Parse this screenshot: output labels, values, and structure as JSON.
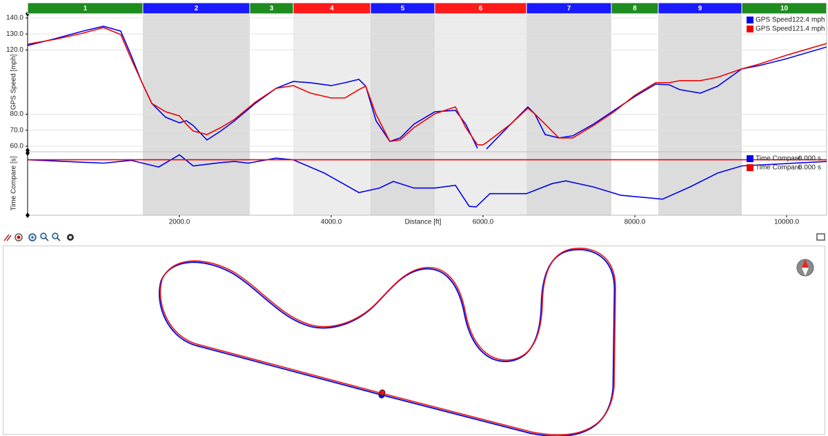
{
  "chart_data": [
    {
      "type": "line",
      "y_label": "GPS Speed [mph]",
      "xlim": [
        0,
        10527
      ],
      "ylim": [
        57.4,
        142.6
      ],
      "yticks": [
        {
          "value": 60,
          "label": "60.0"
        },
        {
          "value": 70,
          "label": "70.0"
        },
        {
          "value": 80,
          "label": "80.0"
        },
        {
          "value": 120,
          "label": "120.0"
        },
        {
          "value": 130,
          "label": "130.0"
        },
        {
          "value": 140,
          "label": "140.0"
        }
      ],
      "grid": true,
      "sectors": [
        {
          "label": "1",
          "color": "#1e8c1e",
          "start": 0,
          "end": 1518
        },
        {
          "label": "2",
          "color": "#1a1aff",
          "start": 1518,
          "end": 2927
        },
        {
          "label": "3",
          "color": "#1e8c1e",
          "start": 2927,
          "end": 3500
        },
        {
          "label": "4",
          "color": "#ff1a1a",
          "start": 3500,
          "end": 4518
        },
        {
          "label": "5",
          "color": "#1a1aff",
          "start": 4518,
          "end": 5364
        },
        {
          "label": "6",
          "color": "#ff1a1a",
          "start": 5364,
          "end": 6573
        },
        {
          "label": "7",
          "color": "#1a1aff",
          "start": 6573,
          "end": 7691
        },
        {
          "label": "8",
          "color": "#1e8c1e",
          "start": 7691,
          "end": 8309
        },
        {
          "label": "9",
          "color": "#1a1aff",
          "start": 8309,
          "end": 9409
        },
        {
          "label": "10",
          "color": "#1e8c1e",
          "start": 9409,
          "end": 10527
        }
      ],
      "x": [
        0,
        364,
        727,
        1000,
        1227,
        1364,
        1500,
        1636,
        1818,
        2000,
        2091,
        2182,
        2364,
        2545,
        2727,
        3000,
        3273,
        3500,
        3727,
        4000,
        4182,
        4364,
        4455,
        4591,
        4773,
        4909,
        5091,
        5364,
        5636,
        5773,
        5927,
        6000,
        6045,
        6364,
        6591,
        6682,
        6818,
        7000,
        7182,
        7455,
        7727,
        8000,
        8273,
        8455,
        8591,
        8864,
        9091,
        9409,
        9636,
        10000,
        10527
      ],
      "series": [
        {
          "name": "GPS Speed",
          "color": "#0000ee",
          "readout": 122.4,
          "unit": "mph",
          "values": [
            122.8,
            127.1,
            131.8,
            134.8,
            131.8,
            116.8,
            100.4,
            86.7,
            78.1,
            74.6,
            75.9,
            72.9,
            63.9,
            69.5,
            75.9,
            86.7,
            96.1,
            100.4,
            99.6,
            97.8,
            99.6,
            101.7,
            97.4,
            75.9,
            63.0,
            65.2,
            73.8,
            81.5,
            82.4,
            73.8,
            58.7,
            null,
            58.3,
            73.8,
            84.5,
            80.2,
            67.3,
            65.2,
            66.5,
            73.8,
            82.4,
            91.0,
            98.7,
            98.3,
            95.3,
            93.1,
            97.4,
            108.2,
            110.3,
            114.6,
            121.9
          ]
        },
        {
          "name": "GPS Speed",
          "color": "#ee0000",
          "readout": 121.4,
          "unit": "mph",
          "values": [
            123.7,
            126.7,
            130.5,
            134.0,
            129.7,
            114.6,
            100.4,
            86.7,
            81.5,
            78.9,
            73.8,
            69.5,
            67.3,
            71.6,
            76.8,
            87.5,
            96.1,
            97.8,
            93.1,
            90.1,
            90.1,
            95.3,
            97.4,
            79.8,
            63.0,
            63.9,
            71.6,
            80.2,
            84.5,
            71.6,
            60.9,
            60.9,
            62.2,
            73.8,
            83.7,
            80.2,
            73.8,
            65.2,
            65.2,
            72.9,
            81.5,
            91.8,
            99.6,
            99.6,
            100.9,
            100.9,
            103.0,
            108.2,
            111.2,
            116.8,
            124.1
          ]
        }
      ]
    },
    {
      "type": "line",
      "y_label": "Time Compare [s]",
      "x_label": "Distance [ft]",
      "xlim": [
        0,
        10527
      ],
      "ylim": [
        -1.0,
        0.12
      ],
      "xticks": [
        {
          "value": 2000,
          "label": "2000.0"
        },
        {
          "value": 4000,
          "label": "4000.0"
        },
        {
          "value": 6000,
          "label": "6000.0"
        },
        {
          "value": 8000,
          "label": "8000.0"
        },
        {
          "value": 10000,
          "label": "10000.0"
        }
      ],
      "x": [
        0,
        1000,
        1364,
        1727,
        2000,
        2182,
        2545,
        2727,
        2909,
        3273,
        3500,
        3909,
        4364,
        4636,
        4818,
        5091,
        5364,
        5636,
        5818,
        5909,
        6091,
        6573,
        6909,
        7091,
        7455,
        7818,
        8364,
        8727,
        9091,
        9409,
        10527
      ],
      "series": [
        {
          "name": "Time Compare",
          "color": "#0000ee",
          "readout": "-0.000",
          "unit": "s",
          "values": [
            0,
            -0.06,
            -0.01,
            -0.13,
            0.09,
            -0.11,
            -0.05,
            -0.03,
            -0.06,
            0.03,
            0,
            -0.24,
            -0.59,
            -0.51,
            -0.39,
            -0.51,
            -0.51,
            -0.46,
            -0.84,
            -0.85,
            -0.61,
            -0.61,
            -0.43,
            -0.38,
            -0.49,
            -0.64,
            -0.71,
            -0.49,
            -0.24,
            -0.11,
            -0.03
          ]
        },
        {
          "name": "Time Compare",
          "color": "#ee0000",
          "readout": "0.000",
          "unit": "s",
          "values": [
            0,
            0,
            0,
            0,
            0,
            0,
            0,
            0,
            0,
            0,
            0,
            0,
            0,
            0,
            0,
            0,
            0,
            0,
            0,
            0,
            0,
            0,
            0,
            0,
            0,
            0,
            0,
            0,
            0,
            0,
            0
          ]
        }
      ]
    }
  ]
}
